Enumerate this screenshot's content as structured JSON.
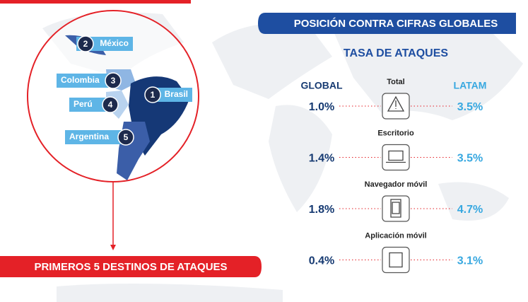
{
  "left": {
    "banner": "PRIMEROS 5 DESTINOS DE ATAQUES",
    "countries": [
      {
        "rank": "1",
        "name": "Brasil"
      },
      {
        "rank": "2",
        "name": "México"
      },
      {
        "rank": "3",
        "name": "Colombia"
      },
      {
        "rank": "4",
        "name": "Perú"
      },
      {
        "rank": "5",
        "name": "Argentina"
      }
    ]
  },
  "right": {
    "banner": "POSICIÓN CONTRA CIFRAS GLOBALES",
    "subtitle": "TASA DE ATAQUES",
    "global_header": "GLOBAL",
    "latam_header": "LATAM",
    "rows": [
      {
        "label": "Total",
        "global": "1.0%",
        "latam": "3.5%"
      },
      {
        "label": "Escritorio",
        "global": "1.4%",
        "latam": "3.5%"
      },
      {
        "label": "Navegador móvil",
        "global": "1.8%",
        "latam": "4.7%"
      },
      {
        "label": "Aplicación móvil",
        "global": "0.4%",
        "latam": "3.1%"
      }
    ]
  }
}
